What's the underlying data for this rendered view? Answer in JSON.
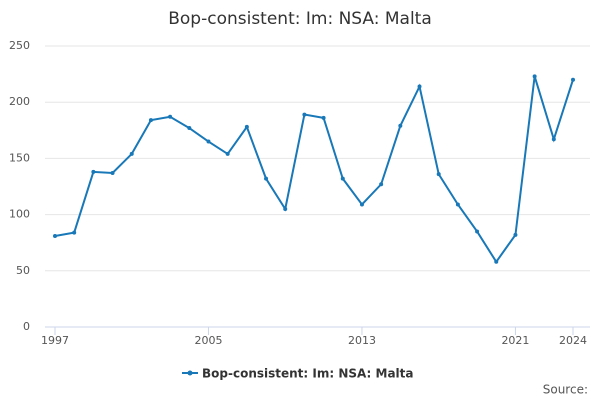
{
  "chart_data": {
    "type": "line",
    "title": "Bop-consistent: Im: NSA: Malta",
    "x": [
      1997,
      1998,
      1999,
      2000,
      2001,
      2002,
      2003,
      2004,
      2005,
      2006,
      2007,
      2008,
      2009,
      2010,
      2011,
      2012,
      2013,
      2014,
      2015,
      2016,
      2017,
      2018,
      2019,
      2020,
      2021,
      2022,
      2023,
      2024
    ],
    "series": [
      {
        "name": "Bop-consistent: Im: NSA: Malta",
        "color": "#1878b8",
        "values": [
          81,
          84,
          138,
          137,
          154,
          184,
          187,
          177,
          165,
          154,
          178,
          132,
          105,
          189,
          186,
          132,
          109,
          127,
          179,
          214,
          136,
          109,
          85,
          58,
          82,
          223,
          167,
          220
        ]
      }
    ],
    "xlim": [
      1997,
      2024
    ],
    "xticks": [
      1997,
      2005,
      2013,
      2021,
      2024
    ],
    "ylim": [
      0,
      250
    ],
    "yticks": [
      0,
      50,
      100,
      150,
      200,
      250
    ],
    "grid": true,
    "source": "Source:"
  }
}
